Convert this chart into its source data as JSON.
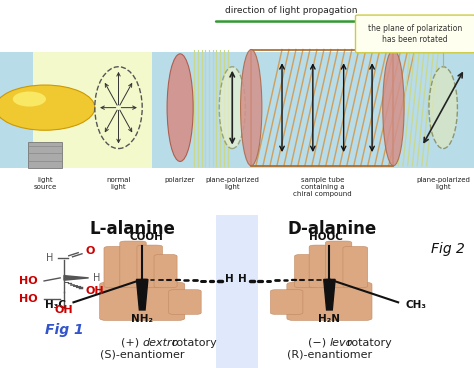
{
  "bg_color": "#ffffff",
  "top_bg": "#b8dce8",
  "yellow_bg": "#ffffc8",
  "bulb_color": "#f0c830",
  "bulb_cap_color": "#999999",
  "polarizer_color": "#d4918a",
  "tube_line_color": "#cc8844",
  "tube_outline": "#aa6622",
  "pp_line_color": "#c8d890",
  "arrow_dir_color": "#339933",
  "callout_bg": "#fffff0",
  "callout_border": "#cccc44",
  "hand_color": "#dba882",
  "hand_edge": "#c08860",
  "mirror_color": "#c8d8f8",
  "direction_text": "direction of light propagation",
  "callout_text": "the plane of polarization\nhas been rotated",
  "label_light_source": "light\nsource",
  "label_normal": "normal\nlight",
  "label_polarizer": "polarizer",
  "label_pp1": "plane-polarized\nlight",
  "label_sample": "sample tube\ncontaining a\nchiral compound",
  "label_pp2": "plane-polarized\nlight",
  "l_alanine": "L-alanine",
  "d_alanine": "D-alanine",
  "fig1_label": "Fig 1",
  "fig2_label": "Fig 2",
  "l_bottom1": "(+) ",
  "l_dextro": "dextro",
  "l_bottom2": "rotatory",
  "l_bottom3": "(S)-enantiomer",
  "d_bottom1": "(−) ",
  "d_levo": "levo",
  "d_bottom2": "rotatory",
  "d_bottom3": "(R)-enantiomer",
  "red_color": "#cc0000",
  "blue_label": "#3355cc"
}
